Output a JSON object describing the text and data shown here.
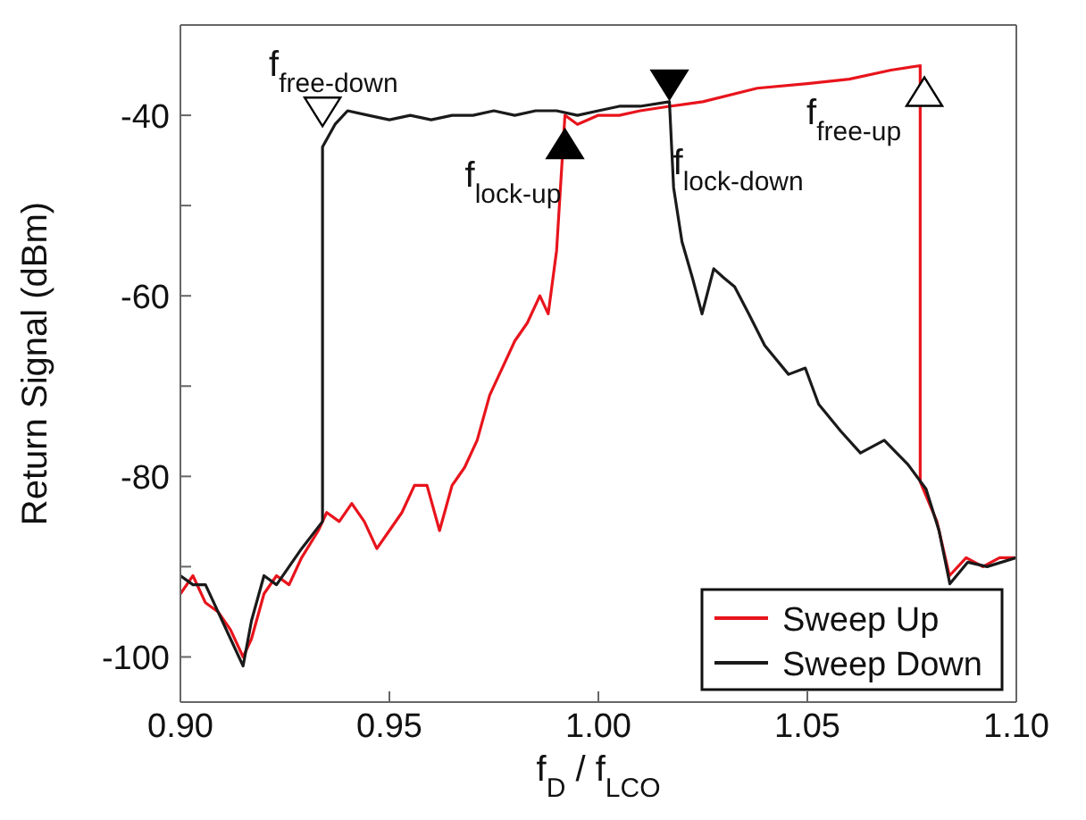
{
  "chart_data": {
    "type": "line",
    "xlabel": "f$_{D}$ / f$_{LCO}$",
    "ylabel": "Return Signal (dBm)",
    "xlim": [
      0.9,
      1.1
    ],
    "xticks": [
      {
        "value": 0.9,
        "label": "0.90"
      },
      {
        "value": 0.95,
        "label": "0.95"
      },
      {
        "value": 1.0,
        "label": "1.00"
      },
      {
        "value": 1.05,
        "label": "1.05"
      },
      {
        "value": 1.1,
        "label": "1.10"
      }
    ],
    "ylim": [
      -105,
      -30
    ],
    "yticks": [
      {
        "value": -100,
        "label": "-100"
      },
      {
        "value": -90,
        "label": null
      },
      {
        "value": -80,
        "label": "-80"
      },
      {
        "value": -70,
        "label": null
      },
      {
        "value": -60,
        "label": "-60"
      },
      {
        "value": -50,
        "label": null
      },
      {
        "value": -40,
        "label": "-40"
      }
    ],
    "legend": "bottom right",
    "marker": "none",
    "line_style": "solid",
    "series": [
      {
        "name": "Sweep Up",
        "color": "#e8141c",
        "x": [
          0.9,
          0.903,
          0.906,
          0.909,
          0.912,
          0.915,
          0.917,
          0.92,
          0.923,
          0.926,
          0.929,
          0.933,
          0.935,
          0.938,
          0.941,
          0.944,
          0.947,
          0.95,
          0.953,
          0.956,
          0.959,
          0.962,
          0.965,
          0.968,
          0.971,
          0.974,
          0.977,
          0.98,
          0.983,
          0.986,
          0.988,
          0.99,
          0.992,
          0.995,
          1.0,
          1.005,
          1.01,
          1.017,
          1.025,
          1.038,
          1.05,
          1.06,
          1.07,
          1.077,
          1.077,
          1.081,
          1.084,
          1.088,
          1.092,
          1.096,
          1.1
        ],
        "values": [
          -93,
          -91,
          -94,
          -95,
          -97,
          -100,
          -98,
          -93,
          -91,
          -92,
          -89,
          -86,
          -84,
          -85,
          -83,
          -85,
          -88,
          -86,
          -84,
          -81,
          -81,
          -86,
          -81,
          -79,
          -76,
          -71,
          -68,
          -65,
          -63,
          -60,
          -62,
          -55,
          -40,
          -41,
          -40,
          -40,
          -39.5,
          -39,
          -38.5,
          -37,
          -36.5,
          -36,
          -35,
          -34.5,
          -80.6,
          -85,
          -91,
          -89,
          -90,
          -89,
          -89
        ]
      },
      {
        "name": "Sweep Down",
        "color": "#1a1a1a",
        "x": [
          0.9,
          0.903,
          0.906,
          0.909,
          0.912,
          0.915,
          0.917,
          0.92,
          0.923,
          0.926,
          0.929,
          0.934,
          0.934,
          0.937,
          0.94,
          0.945,
          0.95,
          0.955,
          0.96,
          0.965,
          0.97,
          0.975,
          0.98,
          0.985,
          0.99,
          0.995,
          1.0,
          1.005,
          1.01,
          1.017,
          1.018,
          1.02,
          1.0225,
          1.0248,
          1.0276,
          1.03,
          1.0326,
          1.036,
          1.0398,
          1.0455,
          1.0495,
          1.0527,
          1.058,
          1.0627,
          1.0684,
          1.0741,
          1.0784,
          1.0815,
          1.0841,
          1.0884,
          1.093,
          1.1
        ],
        "values": [
          -91,
          -92,
          -92,
          -95,
          -98,
          -101,
          -96,
          -91,
          -92,
          -90,
          -88,
          -85,
          -43.5,
          -41,
          -39.5,
          -40,
          -40.5,
          -40,
          -40.5,
          -40,
          -40,
          -39.5,
          -40,
          -39.5,
          -39.5,
          -40,
          -39.5,
          -39,
          -39,
          -38.5,
          -48,
          -54,
          -58,
          -62,
          -57,
          -58,
          -59,
          -62,
          -65.5,
          -68.7,
          -68,
          -72,
          -75,
          -77.4,
          -76,
          -78.7,
          -81.4,
          -86,
          -91.9,
          -89.5,
          -90,
          -89
        ]
      }
    ],
    "annotations": [
      {
        "text": "f$_{free-down}$",
        "x": 0.934,
        "y": -42
      },
      {
        "text": "f$_{lock-up}$",
        "x": 0.992,
        "y": -40
      },
      {
        "text": "f$_{lock-down}$",
        "x": 1.017,
        "y": -39
      },
      {
        "text": "f$_{free-up}$",
        "x": 1.078,
        "y": -35
      }
    ]
  }
}
